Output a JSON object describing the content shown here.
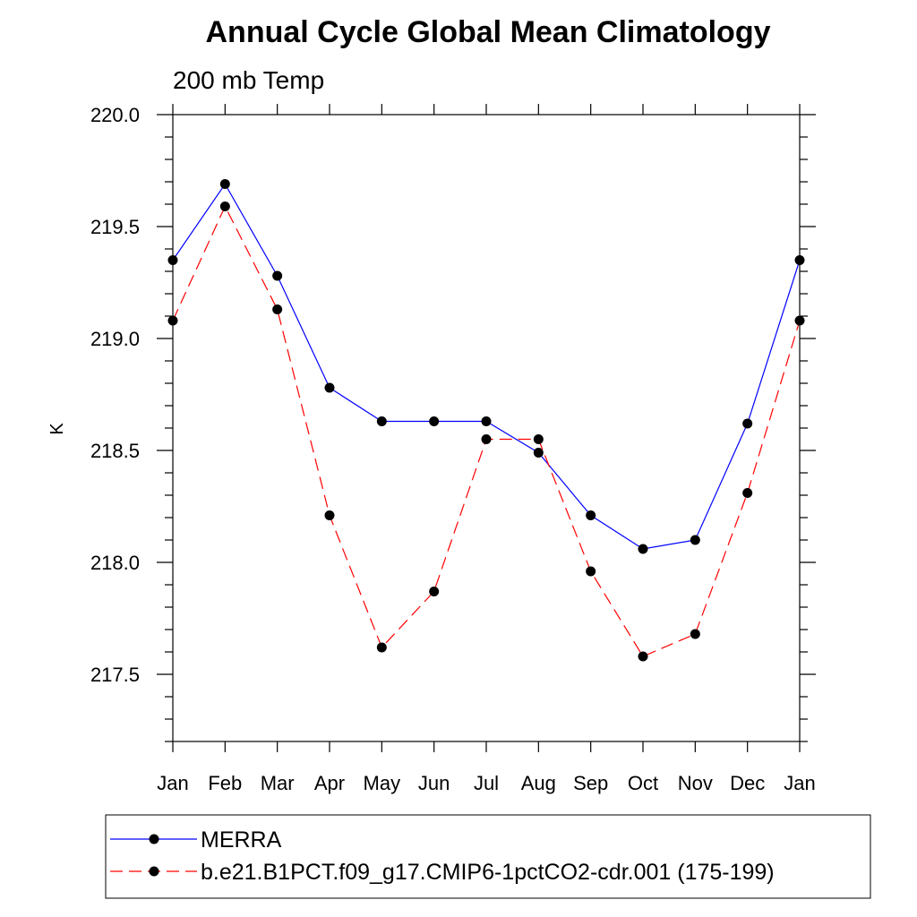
{
  "chart_data": {
    "type": "line",
    "title": "Annual Cycle Global Mean Climatology",
    "subtitle": "200 mb Temp",
    "xlabel": "",
    "ylabel": "K",
    "categories": [
      "Jan",
      "Feb",
      "Mar",
      "Apr",
      "May",
      "Jun",
      "Jul",
      "Aug",
      "Sep",
      "Oct",
      "Nov",
      "Dec",
      "Jan"
    ],
    "ylim": [
      217.2,
      220.0
    ],
    "yticks": [
      "220.0",
      "219.5",
      "219.0",
      "218.5",
      "218.0",
      "217.5"
    ],
    "grid": false,
    "legend_placement": "bottom",
    "series": [
      {
        "name": "MERRA",
        "color": "#0000ff",
        "style": "solid",
        "values": [
          219.35,
          219.69,
          219.28,
          218.78,
          218.63,
          218.63,
          218.63,
          218.49,
          218.21,
          218.06,
          218.1,
          218.62,
          219.35
        ]
      },
      {
        "name": "b.e21.B1PCT.f09_g17.CMIP6-1pctCO2-cdr.001 (175-199)",
        "color": "#ff0000",
        "style": "dashed",
        "values": [
          219.08,
          219.59,
          219.13,
          218.21,
          217.62,
          217.87,
          218.55,
          218.55,
          217.96,
          217.58,
          217.68,
          218.31,
          219.08
        ]
      }
    ]
  }
}
